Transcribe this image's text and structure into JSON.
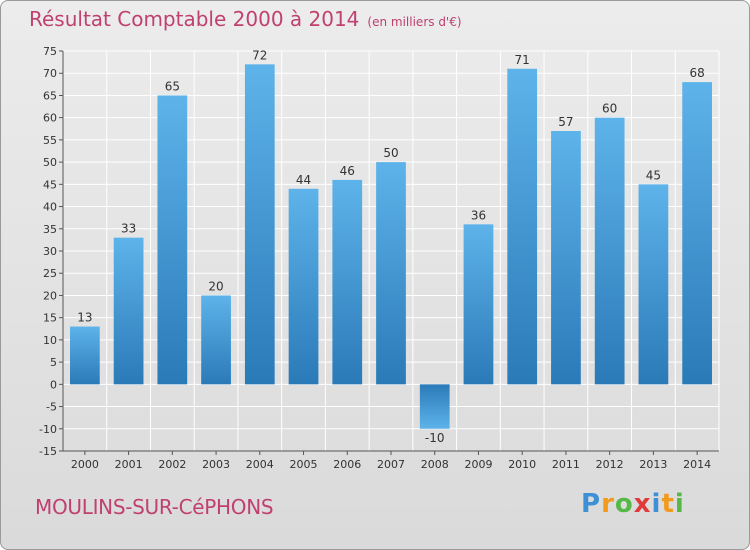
{
  "colors": {
    "title": "#c04070",
    "bar_light": "#5eb3ea",
    "bar_dark": "#2a7ab8",
    "grid": "#ffffff",
    "axis_text": "#333333"
  },
  "location": "MOULINS-SUR-CéPHONS",
  "logo": {
    "letters": [
      "P",
      "r",
      "o",
      "x",
      "i",
      "t",
      "i"
    ],
    "colors": [
      "#3d8fd6",
      "#f29a1c",
      "#56b947",
      "#e03a3a",
      "#3d8fd6",
      "#f29a1c",
      "#56b947"
    ]
  },
  "chart_data": {
    "type": "bar",
    "title": "Résultat Comptable 2000 à 2014",
    "subtitle": "(en milliers d'€)",
    "xlabel": "",
    "ylabel": "",
    "categories": [
      "2000",
      "2001",
      "2002",
      "2003",
      "2004",
      "2005",
      "2006",
      "2007",
      "2008",
      "2009",
      "2010",
      "2011",
      "2012",
      "2013",
      "2014"
    ],
    "values": [
      13,
      33,
      65,
      20,
      72,
      44,
      46,
      50,
      -10,
      36,
      71,
      57,
      60,
      45,
      68
    ],
    "data_labels": [
      "13",
      "33",
      "65",
      "20",
      "72",
      "44",
      "46",
      "50",
      "-10",
      "36",
      "71",
      "57",
      "60",
      "45",
      "68"
    ],
    "ylim": [
      -15,
      75
    ],
    "yticks": [
      -15,
      -10,
      -5,
      0,
      5,
      10,
      15,
      20,
      25,
      30,
      35,
      40,
      45,
      50,
      55,
      60,
      65,
      70,
      75
    ],
    "ytick_labels": [
      "-15",
      "-10",
      "-5",
      "0",
      "5",
      "10",
      "15",
      "20",
      "25",
      "30",
      "35",
      "40",
      "45",
      "50",
      "55",
      "60",
      "65",
      "70",
      "75"
    ],
    "grid": true,
    "legend": "none"
  }
}
